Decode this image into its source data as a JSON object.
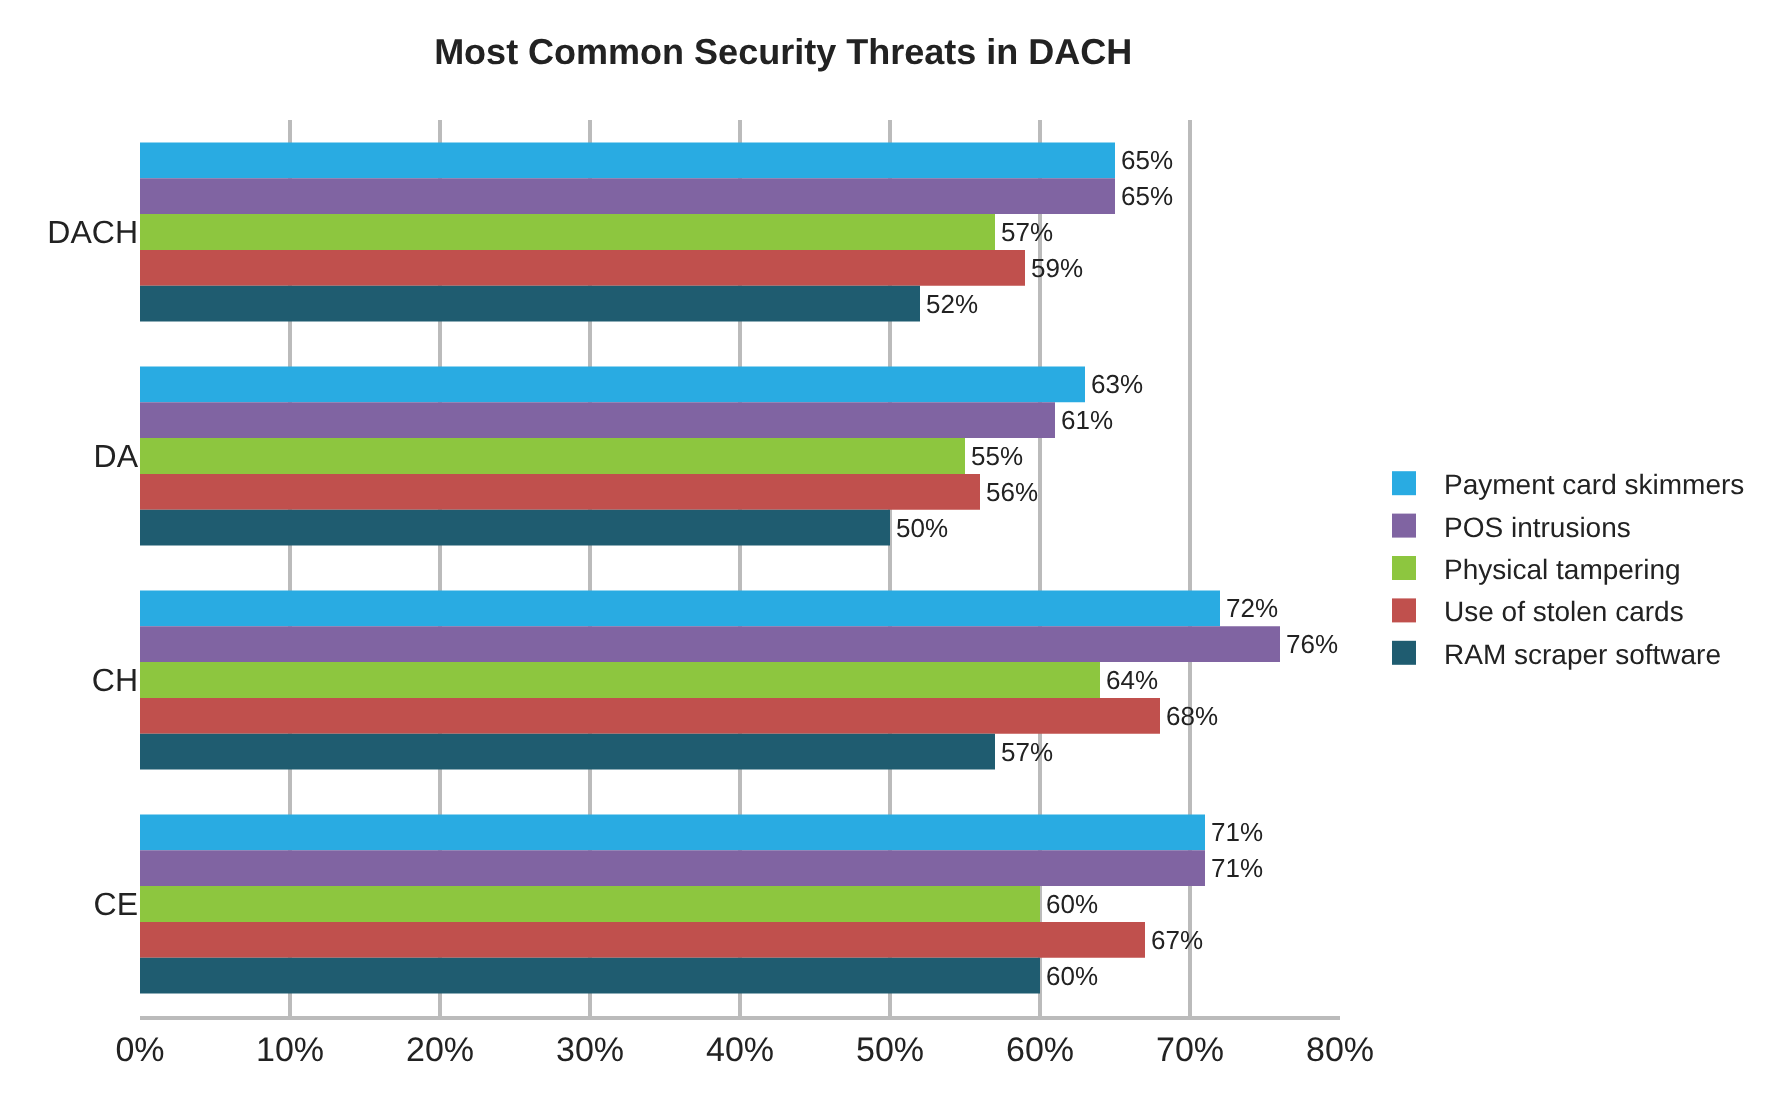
{
  "chart_data": {
    "type": "bar",
    "orientation": "horizontal",
    "title": "Most Common Security Threats in DACH",
    "categories": [
      "DACH",
      "DA",
      "CH",
      "CE"
    ],
    "series": [
      {
        "name": "Payment card skimmers",
        "color": "#29abe2",
        "values": [
          65,
          63,
          72,
          71
        ],
        "value_labels": [
          "65%",
          "63%",
          "72%",
          "71%"
        ]
      },
      {
        "name": "POS intrusions",
        "color": "#8064a2",
        "values": [
          65,
          61,
          76,
          71
        ],
        "value_labels": [
          "65%",
          "61%",
          "76%",
          "71%"
        ]
      },
      {
        "name": "Physical tampering",
        "color": "#8dc63f",
        "values": [
          57,
          55,
          64,
          60
        ],
        "value_labels": [
          "57%",
          "55%",
          "64%",
          "60%"
        ]
      },
      {
        "name": "Use of stolen cards",
        "color": "#c0504d",
        "values": [
          59,
          56,
          68,
          67
        ],
        "value_labels": [
          "59%",
          "56%",
          "68%",
          "67%"
        ]
      },
      {
        "name": "RAM scraper software",
        "color": "#1f5c70",
        "values": [
          52,
          50,
          57,
          60
        ],
        "value_labels": [
          "52%",
          "50%",
          "57%",
          "60%"
        ]
      }
    ],
    "xlim": [
      0,
      80
    ],
    "xticks": [
      {
        "value": 0,
        "label": "0%"
      },
      {
        "value": 10,
        "label": "10%"
      },
      {
        "value": 20,
        "label": "20%"
      },
      {
        "value": 30,
        "label": "30%"
      },
      {
        "value": 40,
        "label": "40%"
      },
      {
        "value": 50,
        "label": "50%"
      },
      {
        "value": 60,
        "label": "60%"
      },
      {
        "value": 70,
        "label": "70%"
      },
      {
        "value": 80,
        "label": "80%"
      }
    ],
    "grid": "x",
    "legend": "right"
  }
}
